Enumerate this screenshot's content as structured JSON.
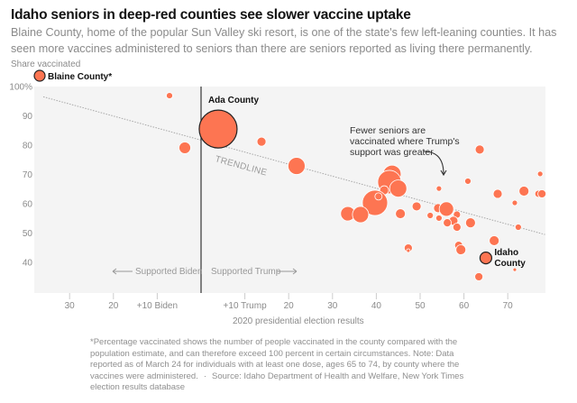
{
  "header": {
    "title": "Idaho seniors in deep-red counties see slower vaccine uptake",
    "subtitle": "Blaine County, home of the popular Sun Valley ski resort, is one of the state's few left-leaning counties. It has seen more vaccines administered to seniors than there are seniors reported as living there permanently."
  },
  "colors": {
    "dot": "#fd7552",
    "plot_bg": "#f4f4f4",
    "trendline": "#a8a8a8",
    "zero_line": "#333333"
  },
  "chart_data": {
    "type": "scatter",
    "title": "Idaho seniors in deep-red counties see slower vaccine uptake",
    "xlabel": "2020 presidential election results",
    "ylabel": "Share vaccinated",
    "xlim": [
      -38,
      78.5
    ],
    "ylim": [
      29.8,
      100
    ],
    "x_note": "Negative x = Biden margin (points), positive x = Trump margin (points)",
    "x_ticks": [
      {
        "value": -30,
        "label": "30"
      },
      {
        "value": -20,
        "label": "20"
      },
      {
        "value": -10,
        "label": "+10 Biden"
      },
      {
        "value": 10,
        "label": "+10 Trump"
      },
      {
        "value": 20,
        "label": "20"
      },
      {
        "value": 30,
        "label": "30"
      },
      {
        "value": 40,
        "label": "40"
      },
      {
        "value": 50,
        "label": "50"
      },
      {
        "value": 60,
        "label": "60"
      },
      {
        "value": 70,
        "label": "70"
      }
    ],
    "y_ticks": [
      {
        "value": 100,
        "label": "100%"
      },
      {
        "value": 90,
        "label": "90"
      },
      {
        "value": 80,
        "label": "80"
      },
      {
        "value": 70,
        "label": "70"
      },
      {
        "value": 60,
        "label": "60"
      },
      {
        "value": 50,
        "label": "50"
      },
      {
        "value": 40,
        "label": "40"
      }
    ],
    "grid": false,
    "trendline": {
      "label": "TRENDLINE",
      "start": [
        -36,
        96.5
      ],
      "end": [
        78.5,
        49.5
      ]
    },
    "side_labels": {
      "left": "Supported Biden",
      "right": "Supported Trump"
    },
    "annotation": "Fewer seniors are vaccinated where Trump's support was greater",
    "annotation_lines": [
      "Fewer seniors are",
      "vaccinated where Trump's",
      "support was greater"
    ],
    "offscale_point": {
      "name": "Blaine County*",
      "note": "above 100% (off scale)",
      "size": "medium"
    },
    "points": [
      {
        "x": -7.2,
        "y": 96.9,
        "r": 3.5
      },
      {
        "x": -3.7,
        "y": 79.1,
        "r": 6.5
      },
      {
        "x": 3.9,
        "y": 85.5,
        "r": 21,
        "label": "Ada County",
        "outlined": true
      },
      {
        "x": 13.8,
        "y": 81.2,
        "r": 5
      },
      {
        "x": 21.8,
        "y": 72.9,
        "r": 9.5
      },
      {
        "x": 43.6,
        "y": 70.1,
        "r": 10
      },
      {
        "x": 43.0,
        "y": 67.4,
        "r": 13
      },
      {
        "x": 45.0,
        "y": 65.2,
        "r": 9.5
      },
      {
        "x": 41.8,
        "y": 64.6,
        "r": 5
      },
      {
        "x": 39.7,
        "y": 60.3,
        "r": 14
      },
      {
        "x": 40.5,
        "y": 62.5,
        "r": 4
      },
      {
        "x": 33.5,
        "y": 56.6,
        "r": 8
      },
      {
        "x": 36.4,
        "y": 56.3,
        "r": 9
      },
      {
        "x": 45.5,
        "y": 56.6,
        "r": 5.5
      },
      {
        "x": 49.2,
        "y": 59.1,
        "r": 5
      },
      {
        "x": 54.3,
        "y": 65.2,
        "r": 3
      },
      {
        "x": 52.3,
        "y": 56.0,
        "r": 3.5
      },
      {
        "x": 54.1,
        "y": 58.5,
        "r": 5
      },
      {
        "x": 56.0,
        "y": 58.2,
        "r": 8
      },
      {
        "x": 54.3,
        "y": 55.1,
        "r": 3.5
      },
      {
        "x": 58.4,
        "y": 56.3,
        "r": 4
      },
      {
        "x": 57.6,
        "y": 54.2,
        "r": 5
      },
      {
        "x": 56.2,
        "y": 53.5,
        "r": 4.5
      },
      {
        "x": 58.4,
        "y": 52.0,
        "r": 4.5
      },
      {
        "x": 61.5,
        "y": 53.5,
        "r": 5.5
      },
      {
        "x": 47.3,
        "y": 44.9,
        "r": 4.5
      },
      {
        "x": 47.3,
        "y": 44.0,
        "r": 2
      },
      {
        "x": 63.6,
        "y": 78.5,
        "r": 5
      },
      {
        "x": 60.9,
        "y": 67.7,
        "r": 3.5
      },
      {
        "x": 77.4,
        "y": 70.2,
        "r": 3
      },
      {
        "x": 67.7,
        "y": 63.4,
        "r": 5
      },
      {
        "x": 73.7,
        "y": 64.3,
        "r": 5.5
      },
      {
        "x": 77.0,
        "y": 63.4,
        "r": 4
      },
      {
        "x": 77.8,
        "y": 63.4,
        "r": 4.5
      },
      {
        "x": 71.6,
        "y": 60.3,
        "r": 3
      },
      {
        "x": 72.4,
        "y": 52.0,
        "r": 3.5
      },
      {
        "x": 66.9,
        "y": 47.4,
        "r": 5.5
      },
      {
        "x": 58.8,
        "y": 45.8,
        "r": 4.5
      },
      {
        "x": 59.3,
        "y": 44.3,
        "r": 5.5
      },
      {
        "x": 65.0,
        "y": 41.5,
        "r": 6.5,
        "label": "Idaho County",
        "label_lines": [
          "Idaho",
          "County"
        ],
        "outlined": true
      },
      {
        "x": 71.6,
        "y": 37.5,
        "r": 2
      },
      {
        "x": 63.4,
        "y": 35.1,
        "r": 4.5
      }
    ]
  },
  "footnote": {
    "note": "*Percentage vaccinated shows the number of people vaccinated in the county compared with the population estimate, and can therefore exceed 100 percent in certain circumstances. Note: Data reported as of March 24 for individuals with at least one dose, ages 65 to 74, by county where the vaccines were administered.",
    "separator": "·",
    "source": "Source: Idaho Department of Health and Welfare, New York Times election results database"
  }
}
